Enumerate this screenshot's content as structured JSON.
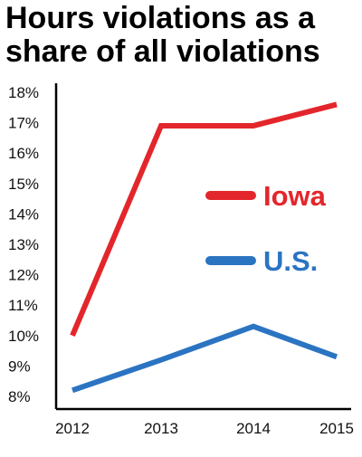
{
  "chart_data": {
    "type": "line",
    "title": "Hours violations as a share of all violations",
    "categories": [
      "2012",
      "2013",
      "2014",
      "2015"
    ],
    "series": [
      {
        "name": "Iowa",
        "values": [
          10.0,
          16.9,
          16.9,
          17.6
        ],
        "color": "#e3262b"
      },
      {
        "name": "U.S.",
        "values": [
          8.2,
          9.2,
          10.3,
          9.3
        ],
        "color": "#2b74c2"
      }
    ],
    "ylim": [
      8,
      18
    ],
    "ytick_labels": [
      "18%",
      "17%",
      "16%",
      "15%",
      "14%",
      "13%",
      "12%",
      "11%",
      "10%",
      "9%",
      "8%"
    ],
    "xlabel": "",
    "ylabel": "",
    "legend": "inside-right",
    "grid": false
  }
}
